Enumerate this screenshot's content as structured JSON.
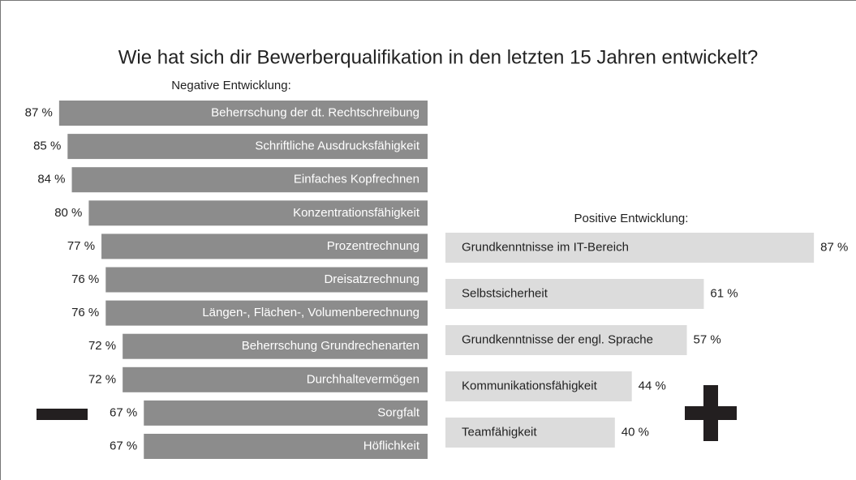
{
  "title": "Wie hat sich dir Bewerberqualifikation in den letzten 15 Jahren entwickelt?",
  "chart_data": [
    {
      "type": "bar",
      "subtitle": "Negative Entwicklung:",
      "color": "#8c8c8c",
      "categories": [
        "Beherrschung der dt. Rechtschreibung",
        "Schriftliche Ausdrucksfähigkeit",
        "Einfaches Kopfrechnen",
        "Konzentrationsfähigkeit",
        "Prozentrechnung",
        "Dreisatzrechnung",
        "Längen-, Flächen-, Volumenberechnung",
        "Beherrschung Grundrechenarten",
        "Durchhaltevermögen",
        "Sorgfalt",
        "Höflichkeit"
      ],
      "values": [
        87,
        85,
        84,
        80,
        77,
        76,
        76,
        72,
        72,
        67,
        67
      ],
      "value_labels": [
        "87 %",
        "85 %",
        "84 %",
        "80 %",
        "77 %",
        "76 %",
        "76 %",
        "72 %",
        "72 %",
        "67 %",
        "67 %"
      ]
    },
    {
      "type": "bar",
      "subtitle": "Positive Entwicklung:",
      "color": "#dcdcdc",
      "categories": [
        "Grundkenntnisse im IT-Bereich",
        "Selbstsicherheit",
        "Grundkenntnisse der engl. Sprache",
        "Kommunikationsfähigkeit",
        "Teamfähigkeit"
      ],
      "values": [
        87,
        61,
        57,
        44,
        40
      ],
      "value_labels": [
        "87 %",
        "61 %",
        "57 %",
        "44 %",
        "40 %"
      ]
    }
  ]
}
